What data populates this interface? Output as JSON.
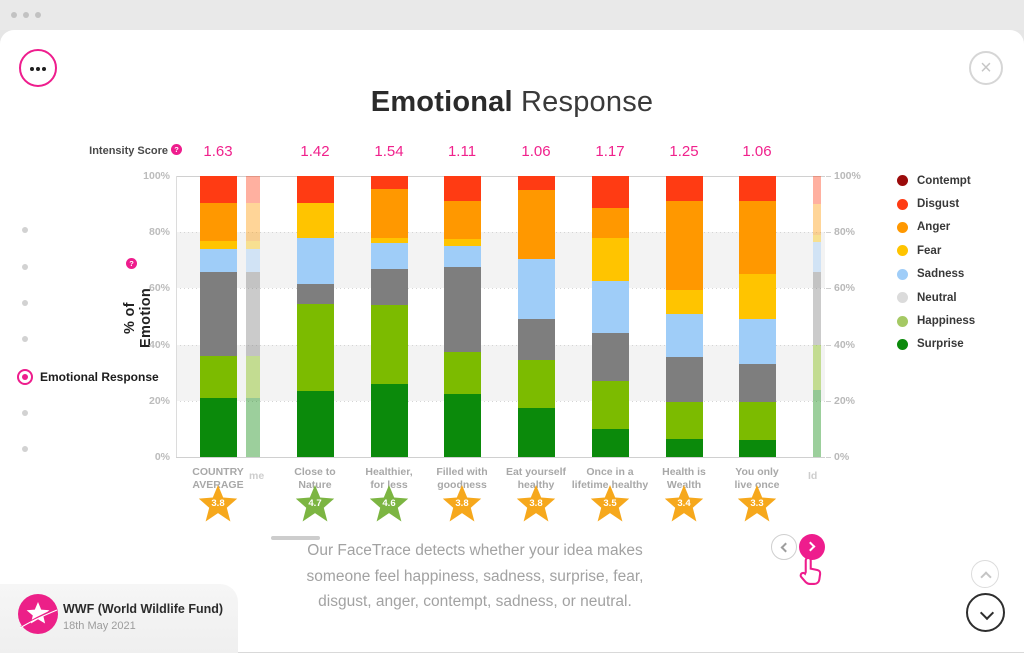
{
  "chrome": {
    "window_dots": 3,
    "menu_icon": "ellipsis",
    "close_icon": "×"
  },
  "header": {
    "title_bold": "Emotional",
    "title_regular": "Response"
  },
  "sidebar": {
    "dots_above": 4,
    "dots_below": 2,
    "active_label": "Emotional Response"
  },
  "intensity": {
    "label": "Intensity Score",
    "help": "?"
  },
  "chart_data": {
    "type": "bar",
    "stacked": true,
    "title": "Emotional Response",
    "ylabel": "% of Emotion",
    "ylabel_help": "?",
    "ylim": [
      0,
      100
    ],
    "y_ticks": [
      "100%",
      "80%",
      "60%",
      "40%",
      "20%",
      "0%"
    ],
    "grid": "dotted horizontal lines at 20/40/60/80, shaded bands 20-40 and 60-80",
    "legend_position": "right",
    "legend": [
      {
        "name": "Contempt",
        "color": "#9B0B0B"
      },
      {
        "name": "Disgust",
        "color": "#FF3B13"
      },
      {
        "name": "Anger",
        "color": "#FF9800"
      },
      {
        "name": "Fear",
        "color": "#FFC400"
      },
      {
        "name": "Sadness",
        "color": "#9FCDF8"
      },
      {
        "name": "Neutral",
        "color": "#DBDBDB"
      },
      {
        "name": "Happiness",
        "color": "#A5C964"
      },
      {
        "name": "Surprise",
        "color": "#0B8A0B"
      }
    ],
    "stack_order_bottom_to_top": [
      "Surprise",
      "Happiness",
      "Neutral",
      "Sadness",
      "Fear",
      "Anger",
      "Disgust",
      "Contempt"
    ],
    "bar_colors": {
      "Surprise": "#0B8A0B",
      "Happiness": "#7CBB00",
      "Neutral": "#7E7E7E",
      "Sadness": "#9FCDF8",
      "Fear": "#FFC400",
      "Anger": "#FF9800",
      "Disgust": "#FF3B13",
      "Contempt": "#9B0B0B"
    },
    "categories": [
      {
        "label_lines": [
          "COUNTRY",
          "AVERAGE"
        ],
        "intensity": "1.63",
        "star": {
          "value": "3.8",
          "color": "#F6A81C"
        },
        "values": {
          "Surprise": 21,
          "Happiness": 15,
          "Neutral": 30,
          "Sadness": 8,
          "Fear": 3,
          "Anger": 13.5,
          "Disgust": 9.5,
          "Contempt": 0
        }
      },
      {
        "label_lines": [
          "Close to",
          "Nature"
        ],
        "intensity": "1.42",
        "star": {
          "value": "4.7",
          "color": "#7CB542"
        },
        "values": {
          "Surprise": 23.5,
          "Happiness": 31,
          "Neutral": 7,
          "Sadness": 16.5,
          "Fear": 12.5,
          "Anger": 0,
          "Disgust": 9.5,
          "Contempt": 0
        }
      },
      {
        "label_lines": [
          "Healthier,",
          "for less"
        ],
        "intensity": "1.54",
        "star": {
          "value": "4.6",
          "color": "#7CB542"
        },
        "values": {
          "Surprise": 26,
          "Happiness": 28,
          "Neutral": 13,
          "Sadness": 9,
          "Fear": 2,
          "Anger": 17.5,
          "Disgust": 4.5,
          "Contempt": 0
        }
      },
      {
        "label_lines": [
          "Filled with",
          "goodness"
        ],
        "intensity": "1.11",
        "star": {
          "value": "3.8",
          "color": "#F6A81C"
        },
        "values": {
          "Surprise": 22.5,
          "Happiness": 15,
          "Neutral": 30,
          "Sadness": 7.5,
          "Fear": 2.5,
          "Anger": 13.5,
          "Disgust": 9,
          "Contempt": 0
        }
      },
      {
        "label_lines": [
          "Eat yourself",
          "healthy"
        ],
        "intensity": "1.06",
        "star": {
          "value": "3.8",
          "color": "#F6A81C"
        },
        "values": {
          "Surprise": 17.5,
          "Happiness": 17,
          "Neutral": 14.5,
          "Sadness": 21.5,
          "Fear": 0,
          "Anger": 24.5,
          "Disgust": 5,
          "Contempt": 0
        }
      },
      {
        "label_lines": [
          "Once in a",
          "lifetime healthy"
        ],
        "intensity": "1.17",
        "star": {
          "value": "3.5",
          "color": "#F6A81C"
        },
        "values": {
          "Surprise": 10,
          "Happiness": 17,
          "Neutral": 17,
          "Sadness": 18.5,
          "Fear": 15.5,
          "Anger": 10.5,
          "Disgust": 11.5,
          "Contempt": 0
        }
      },
      {
        "label_lines": [
          "Health is",
          "Wealth"
        ],
        "intensity": "1.25",
        "star": {
          "value": "3.4",
          "color": "#F6A81C"
        },
        "values": {
          "Surprise": 6.5,
          "Happiness": 13,
          "Neutral": 16,
          "Sadness": 15.5,
          "Fear": 8.5,
          "Anger": 31.5,
          "Disgust": 9,
          "Contempt": 0
        }
      },
      {
        "label_lines": [
          "You only",
          "live once"
        ],
        "intensity": "1.06",
        "star": {
          "value": "3.3",
          "color": "#F6A81C"
        },
        "values": {
          "Surprise": 6,
          "Happiness": 13.5,
          "Neutral": 13.5,
          "Sadness": 16,
          "Fear": 16,
          "Anger": 26,
          "Disgust": 9,
          "Contempt": 0
        }
      }
    ],
    "edge_bars": [
      {
        "side": "left",
        "label_fragment": "me",
        "values": {
          "Surprise": 21,
          "Happiness": 15,
          "Neutral": 30,
          "Sadness": 8,
          "Fear": 3,
          "Anger": 13.5,
          "Disgust": 9.5,
          "Contempt": 0
        }
      },
      {
        "side": "right",
        "label_fragment": "Id",
        "values": {
          "Surprise": 24,
          "Happiness": 16,
          "Neutral": 26,
          "Sadness": 10.5,
          "Fear": 2.5,
          "Anger": 11,
          "Disgust": 10,
          "Contempt": 0
        }
      }
    ]
  },
  "footer": {
    "lines": [
      "Our FaceTrace detects whether your idea makes",
      "someone feel happiness, sadness, surprise, fear,",
      "disgust, anger, contempt, sadness, or neutral."
    ]
  },
  "source": {
    "name": "WWF (World Wildlife Fund)",
    "date": "18th May 2021"
  }
}
